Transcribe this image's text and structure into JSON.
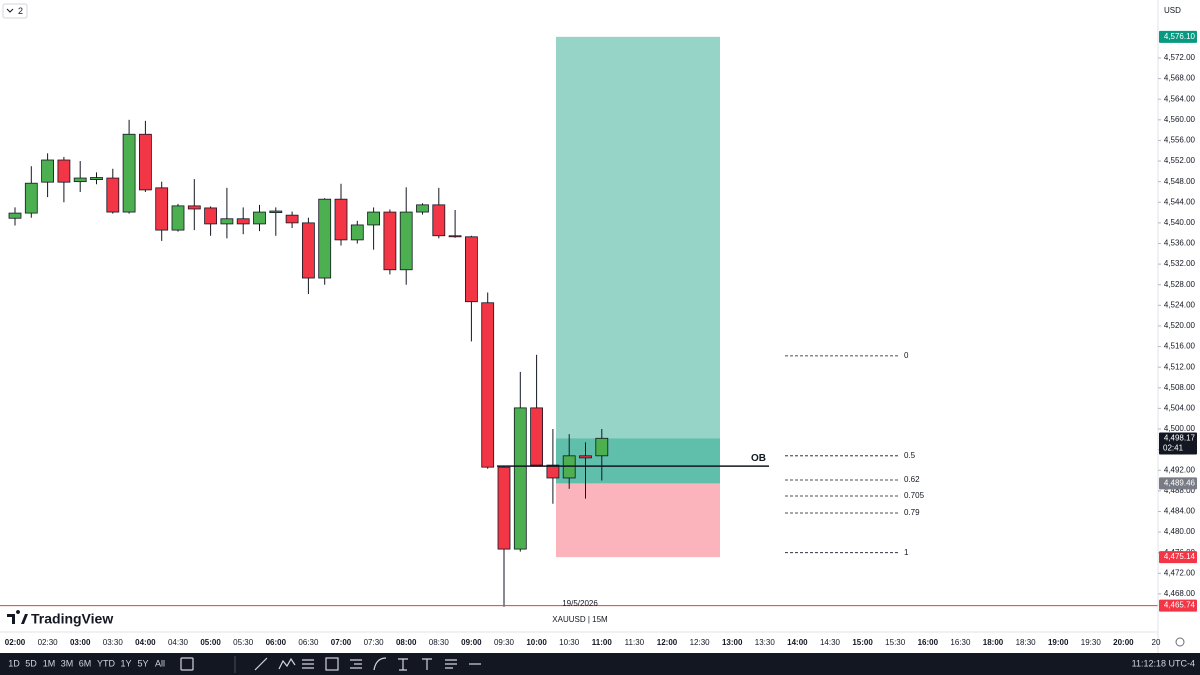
{
  "header": {
    "badge": "2",
    "currency": "USD"
  },
  "chart_data": {
    "type": "candlestick",
    "x": [
      "02:00",
      null,
      "02:30",
      null,
      "03:00",
      null,
      "03:30",
      null,
      "04:00",
      null,
      "04:30",
      null,
      "05:00",
      null,
      "05:30",
      null,
      "06:00",
      null,
      "06:30",
      null,
      "07:00",
      null,
      "07:30",
      null,
      "08:00",
      null,
      "08:30",
      null,
      "09:00",
      null,
      "09:30",
      null,
      "10:00",
      null,
      "10:30",
      null,
      "11:00"
    ],
    "x_axis_extra": [
      "11:30",
      "12:00",
      "12:30",
      "13:00",
      "13:30",
      "14:00",
      "14:30",
      "15:00",
      "15:30",
      "16:00",
      "16:30",
      "18:00",
      "18:30",
      "19:00",
      "19:30",
      "20:00",
      "20"
    ],
    "open": [
      4540.9,
      4541.9,
      4547.9,
      4552.2,
      4548.0,
      4548.4,
      4548.7,
      4542.1,
      4557.2,
      4546.8,
      4538.6,
      4543.3,
      4542.9,
      4539.8,
      4540.8,
      4539.8,
      4542.0,
      4541.5,
      4540.0,
      4529.3,
      4544.6,
      4536.7,
      4539.6,
      4542.1,
      4530.9,
      4542.1,
      4543.5,
      4537.5,
      4537.3,
      4524.5,
      4492.6,
      4476.7,
      4504.1,
      4493.0,
      4490.5,
      4494.8,
      4494.8
    ],
    "high": [
      4543.0,
      4551.0,
      4553.5,
      4552.8,
      4552.0,
      4549.8,
      4550.5,
      4560.0,
      4559.8,
      4548.0,
      4543.7,
      4548.5,
      4543.2,
      4546.8,
      4543.0,
      4543.5,
      4543.0,
      4542.2,
      4541.0,
      4544.8,
      4547.6,
      4540.4,
      4543.0,
      4542.6,
      4546.9,
      4543.8,
      4546.8,
      4542.5,
      4537.5,
      4526.5,
      4492.8,
      4511.1,
      4514.4,
      4500.0,
      4499.0,
      4497.4,
      4500.0
    ],
    "low": [
      4539.5,
      4541.0,
      4545.0,
      4544.0,
      4546.0,
      4547.5,
      4541.8,
      4541.8,
      4546.0,
      4536.5,
      4538.3,
      4538.6,
      4537.5,
      4537.0,
      4537.8,
      4538.4,
      4537.5,
      4539.0,
      4526.2,
      4528.0,
      4535.6,
      4536.0,
      4534.8,
      4530.0,
      4528.0,
      4541.6,
      4537.0,
      4537.1,
      4517.0,
      4492.3,
      4465.5,
      4476.2,
      4492.8,
      4485.5,
      4488.4,
      4486.5,
      4490.0
    ],
    "close": [
      4541.9,
      4547.7,
      4552.2,
      4547.9,
      4548.7,
      4548.8,
      4542.1,
      4557.2,
      4546.4,
      4538.6,
      4543.3,
      4542.7,
      4539.8,
      4540.8,
      4539.8,
      4542.1,
      4542.3,
      4540.0,
      4529.3,
      4544.6,
      4536.7,
      4539.6,
      4542.1,
      4530.9,
      4542.1,
      4543.5,
      4537.5,
      4537.3,
      4524.7,
      4492.6,
      4476.7,
      4504.1,
      4493.0,
      4490.5,
      4494.8,
      4494.4,
      4498.2
    ],
    "up_color": "#4caf50",
    "down_color": "#f23645",
    "ylim": [
      4461,
      4583.25
    ],
    "yticks": [
      {
        "value": 4468,
        "label": "4,468.00"
      },
      {
        "value": 4472,
        "label": "4,472.00"
      },
      {
        "value": 4476,
        "label": "4,476.00"
      },
      {
        "value": 4480,
        "label": "4,480.00"
      },
      {
        "value": 4484,
        "label": "4,484.00"
      },
      {
        "value": 4488,
        "label": "4,488.00"
      },
      {
        "value": 4492,
        "label": "4,492.00"
      },
      {
        "value": 4496,
        "label": "4,496.00"
      },
      {
        "value": 4500,
        "label": "4,500.00"
      },
      {
        "value": 4504,
        "label": "4,504.00"
      },
      {
        "value": 4508,
        "label": "4,508.00"
      },
      {
        "value": 4512,
        "label": "4,512.00"
      },
      {
        "value": 4516,
        "label": "4,516.00"
      },
      {
        "value": 4520,
        "label": "4,520.00"
      },
      {
        "value": 4524,
        "label": "4,524.00"
      },
      {
        "value": 4528,
        "label": "4,528.00"
      },
      {
        "value": 4532,
        "label": "4,532.00"
      },
      {
        "value": 4536,
        "label": "4,536.00"
      },
      {
        "value": 4540,
        "label": "4,540.00"
      },
      {
        "value": 4544,
        "label": "4,544.00"
      },
      {
        "value": 4548,
        "label": "4,548.00"
      },
      {
        "value": 4552,
        "label": "4,552.00"
      },
      {
        "value": 4556,
        "label": "4,556.00"
      },
      {
        "value": 4560,
        "label": "4,560.00"
      },
      {
        "value": 4564,
        "label": "4,564.00"
      },
      {
        "value": 4568,
        "label": "4,568.00"
      },
      {
        "value": 4572,
        "label": "4,572.00"
      }
    ],
    "position": {
      "target": {
        "value": 4576.1,
        "label": "4,576.10"
      },
      "current": {
        "value": 4498.17,
        "label": "4,498.17"
      },
      "entry": {
        "value": 4489.46,
        "label": "4,489.46"
      },
      "stop": {
        "value": 4475.14,
        "label": "4,475.14"
      }
    },
    "countdown": "02:41",
    "ob_line": {
      "value": 4492.8,
      "label": "OB"
    },
    "low_line": {
      "value": 4465.74,
      "label": "4,465.74"
    },
    "fib": [
      {
        "ratio": 0,
        "price": 4514.2
      },
      {
        "ratio": 0.5,
        "price": 4494.8
      },
      {
        "ratio": 0.62,
        "price": 4490.1
      },
      {
        "ratio": 0.705,
        "price": 4487.0
      },
      {
        "ratio": 0.79,
        "price": 4483.7
      },
      {
        "ratio": 1,
        "price": 4476.0
      }
    ]
  },
  "watermark": {
    "date": "19/5/2026",
    "symbol": "XAUUSD | 15M",
    "logo": "TradingView"
  },
  "toolbar": {
    "ranges": [
      "1D",
      "5D",
      "1M",
      "3M",
      "6M",
      "YTD",
      "1Y",
      "5Y",
      "All"
    ],
    "clock": "11:12:18 UTC-4"
  }
}
